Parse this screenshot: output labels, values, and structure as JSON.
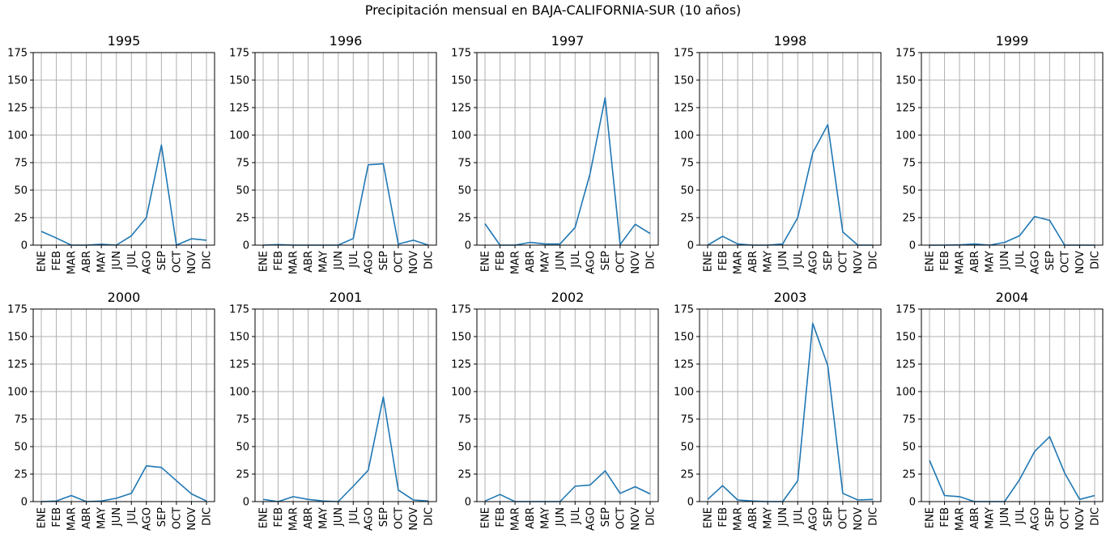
{
  "suptitle": "Precipitación mensual en BAJA-CALIFORNIA-SUR (10 años)",
  "style": {
    "line_color": "#1f77b4",
    "grid_color": "#b0b0b0",
    "axis_color": "#000000"
  },
  "chart_data": [
    {
      "type": "line",
      "title": "1995",
      "categories": [
        "ENE",
        "FEB",
        "MAR",
        "ABR",
        "MAY",
        "JUN",
        "JUL",
        "AGO",
        "SEP",
        "OCT",
        "NOV",
        "DIC"
      ],
      "values": [
        12.5,
        6.5,
        0,
        0,
        0.8,
        0,
        8.5,
        25,
        91,
        0,
        5.8,
        4.5
      ],
      "ylim": [
        0,
        175
      ],
      "yticks": [
        0,
        25,
        50,
        75,
        100,
        125,
        150,
        175
      ],
      "grid": true
    },
    {
      "type": "line",
      "title": "1996",
      "categories": [
        "ENE",
        "FEB",
        "MAR",
        "ABR",
        "MAY",
        "JUN",
        "JUL",
        "AGO",
        "SEP",
        "OCT",
        "NOV",
        "DIC"
      ],
      "values": [
        0,
        0.5,
        0,
        0,
        0,
        0,
        6,
        73,
        74,
        1,
        4.5,
        0
      ],
      "ylim": [
        0,
        175
      ],
      "yticks": [
        0,
        25,
        50,
        75,
        100,
        125,
        150,
        175
      ],
      "grid": true
    },
    {
      "type": "line",
      "title": "1997",
      "categories": [
        "ENE",
        "FEB",
        "MAR",
        "ABR",
        "MAY",
        "JUN",
        "JUL",
        "AGO",
        "SEP",
        "OCT",
        "NOV",
        "DIC"
      ],
      "values": [
        19.5,
        0,
        0,
        2.5,
        1,
        1,
        16,
        65,
        134,
        0.5,
        19,
        10.5
      ],
      "ylim": [
        0,
        175
      ],
      "yticks": [
        0,
        25,
        50,
        75,
        100,
        125,
        150,
        175
      ],
      "grid": true
    },
    {
      "type": "line",
      "title": "1998",
      "categories": [
        "ENE",
        "FEB",
        "MAR",
        "ABR",
        "MAY",
        "JUN",
        "JUL",
        "AGO",
        "SEP",
        "OCT",
        "NOV",
        "DIC"
      ],
      "values": [
        0,
        8,
        1,
        0,
        0,
        1,
        25,
        84,
        109.5,
        12,
        0,
        0
      ],
      "ylim": [
        0,
        175
      ],
      "yticks": [
        0,
        25,
        50,
        75,
        100,
        125,
        150,
        175
      ],
      "grid": true
    },
    {
      "type": "line",
      "title": "1999",
      "categories": [
        "ENE",
        "FEB",
        "MAR",
        "ABR",
        "MAY",
        "JUN",
        "JUL",
        "AGO",
        "SEP",
        "OCT",
        "NOV",
        "DIC"
      ],
      "values": [
        0,
        0,
        0.2,
        1,
        0,
        2.5,
        8.5,
        26,
        22.5,
        0,
        0,
        0
      ],
      "ylim": [
        0,
        175
      ],
      "yticks": [
        0,
        25,
        50,
        75,
        100,
        125,
        150,
        175
      ],
      "grid": true
    },
    {
      "type": "line",
      "title": "2000",
      "categories": [
        "ENE",
        "FEB",
        "MAR",
        "ABR",
        "MAY",
        "JUN",
        "JUL",
        "AGO",
        "SEP",
        "OCT",
        "NOV",
        "DIC"
      ],
      "values": [
        0,
        0.5,
        5.5,
        0,
        0.5,
        3,
        7.5,
        32.5,
        31,
        19,
        7,
        0.5
      ],
      "ylim": [
        0,
        175
      ],
      "yticks": [
        0,
        25,
        50,
        75,
        100,
        125,
        150,
        175
      ],
      "grid": true
    },
    {
      "type": "line",
      "title": "2001",
      "categories": [
        "ENE",
        "FEB",
        "MAR",
        "ABR",
        "MAY",
        "JUN",
        "JUL",
        "AGO",
        "SEP",
        "OCT",
        "NOV",
        "DIC"
      ],
      "values": [
        2,
        0,
        4.5,
        2,
        0.5,
        0,
        14,
        28.5,
        95,
        10.5,
        1.5,
        0.5
      ],
      "ylim": [
        0,
        175
      ],
      "yticks": [
        0,
        25,
        50,
        75,
        100,
        125,
        150,
        175
      ],
      "grid": true
    },
    {
      "type": "line",
      "title": "2002",
      "categories": [
        "ENE",
        "FEB",
        "MAR",
        "ABR",
        "MAY",
        "JUN",
        "JUL",
        "AGO",
        "SEP",
        "OCT",
        "NOV",
        "DIC"
      ],
      "values": [
        0.5,
        6.5,
        0,
        0,
        0,
        0,
        14,
        15,
        28,
        7.5,
        13.5,
        7
      ],
      "ylim": [
        0,
        175
      ],
      "yticks": [
        0,
        25,
        50,
        75,
        100,
        125,
        150,
        175
      ],
      "grid": true
    },
    {
      "type": "line",
      "title": "2003",
      "categories": [
        "ENE",
        "FEB",
        "MAR",
        "ABR",
        "MAY",
        "JUN",
        "JUL",
        "AGO",
        "SEP",
        "OCT",
        "NOV",
        "DIC"
      ],
      "values": [
        2,
        14.5,
        1.5,
        0.5,
        0,
        0,
        19,
        162,
        123.5,
        7.5,
        1.5,
        2
      ],
      "ylim": [
        0,
        175
      ],
      "yticks": [
        0,
        25,
        50,
        75,
        100,
        125,
        150,
        175
      ],
      "grid": true
    },
    {
      "type": "line",
      "title": "2004",
      "categories": [
        "ENE",
        "FEB",
        "MAR",
        "ABR",
        "MAY",
        "JUN",
        "JUL",
        "AGO",
        "SEP",
        "OCT",
        "NOV",
        "DIC"
      ],
      "values": [
        37.5,
        5.5,
        4.5,
        0,
        0,
        0,
        20,
        45.5,
        59,
        26,
        2,
        5.5
      ],
      "ylim": [
        0,
        175
      ],
      "yticks": [
        0,
        25,
        50,
        75,
        100,
        125,
        150,
        175
      ],
      "grid": true
    }
  ]
}
